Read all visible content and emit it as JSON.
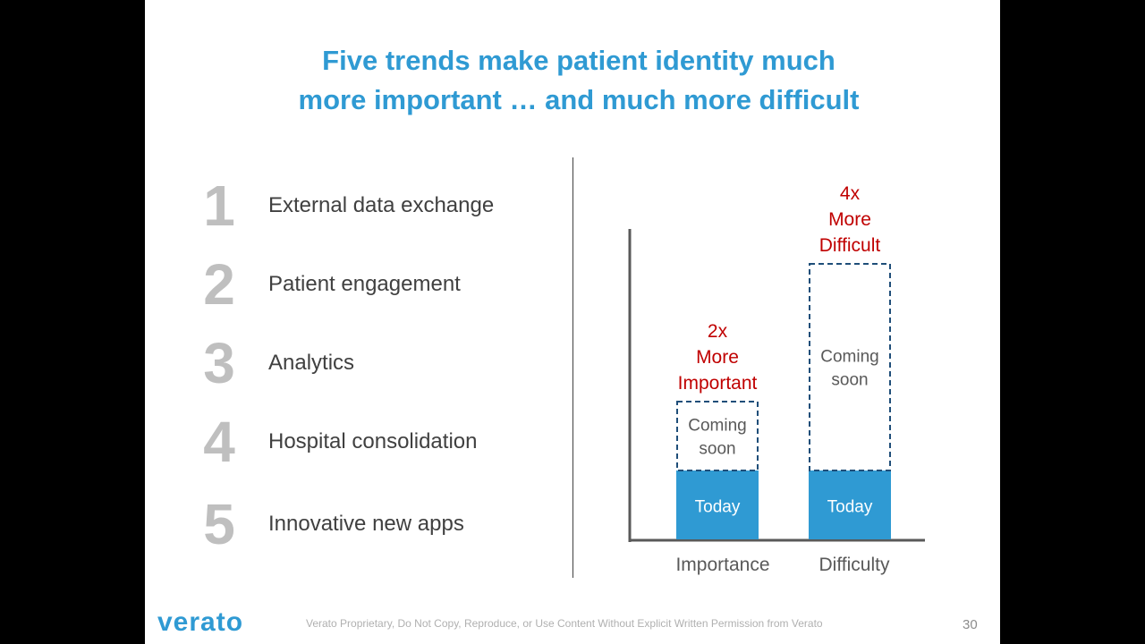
{
  "slide": {
    "title_lines": [
      "Five trends make patient identity much",
      "more important … and much more difficult"
    ],
    "trends": [
      {
        "number": "1",
        "label": "External data exchange"
      },
      {
        "number": "2",
        "label": "Patient engagement"
      },
      {
        "number": "3",
        "label": "Analytics"
      },
      {
        "number": "4",
        "label": "Hospital consolidation"
      },
      {
        "number": "5",
        "label": "Innovative new apps"
      }
    ],
    "footer": {
      "logo": "verato",
      "notice": "Verato Proprietary, Do Not Copy, Reproduce, or Use Content Without Explicit Written Permission from Verato",
      "page_number": "30"
    }
  },
  "colors": {
    "title": "#2f9ad3",
    "bar_fill": "#2f9ad3",
    "callout": "#c00000",
    "axis": "#595959",
    "trend_number": "#bfbfbf",
    "trend_label": "#404040"
  },
  "chart_data": {
    "type": "bar",
    "categories": [
      "Importance",
      "Difficulty"
    ],
    "series": [
      {
        "name": "Today",
        "values": [
          1,
          1
        ]
      },
      {
        "name": "Coming soon",
        "values": [
          1,
          3
        ]
      }
    ],
    "bar_labels": {
      "today": "Today",
      "coming_soon": [
        "Coming",
        "soon"
      ]
    },
    "callouts": [
      [
        "2x",
        "More",
        "Important"
      ],
      [
        "4x",
        "More",
        "Difficult"
      ]
    ],
    "ylim": [
      0,
      4.4
    ],
    "grid": false,
    "legend": "none"
  }
}
